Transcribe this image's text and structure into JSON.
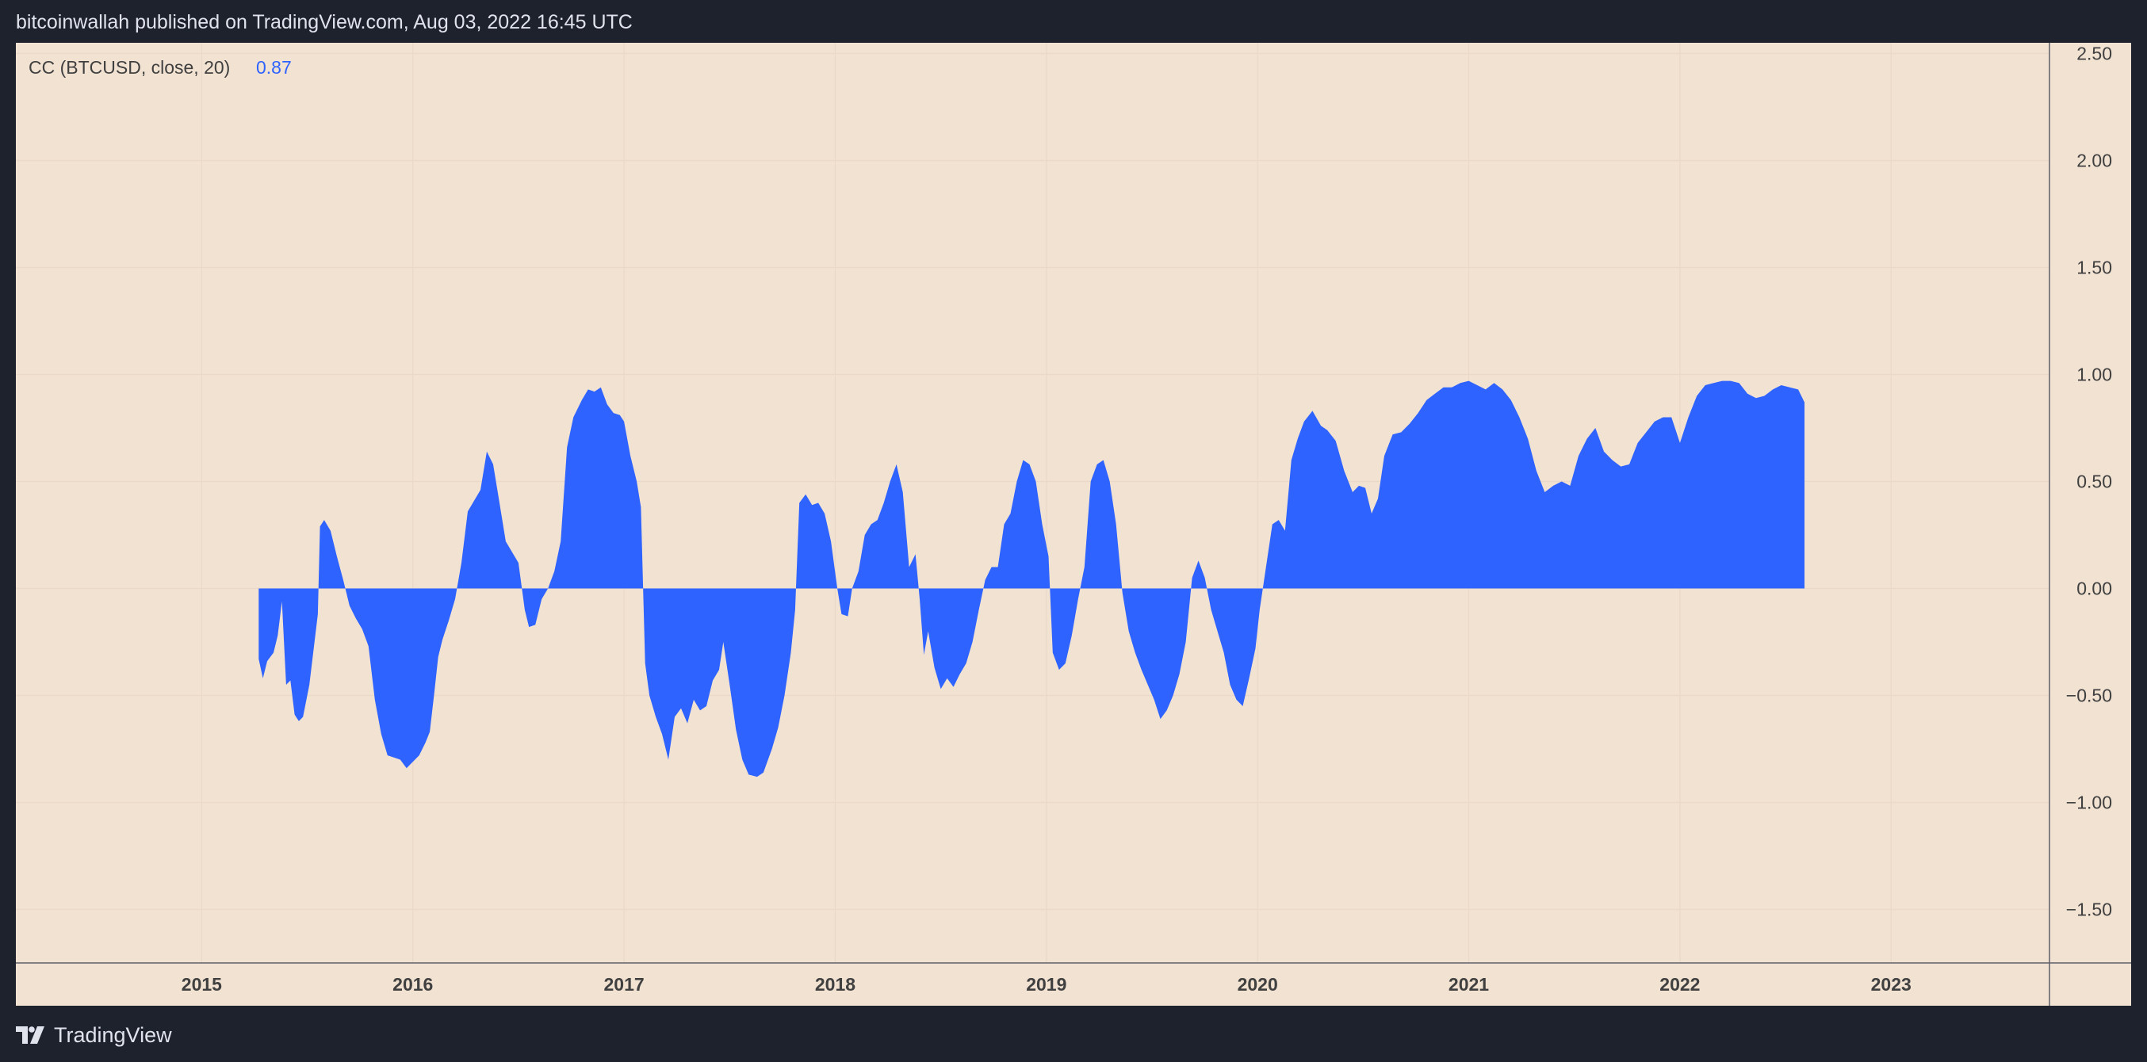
{
  "header": {
    "published_line": "bitcoinwallah published on TradingView.com, Aug 03, 2022 16:45 UTC"
  },
  "footer": {
    "brand": "TradingView",
    "logo_icon": "tradingview-logo-icon"
  },
  "colors": {
    "frame": "#1e222d",
    "plot_background": "#f2e2d2",
    "series_fill": "#2e63ff",
    "grid": "#ead8c8",
    "axis_text": "#404040",
    "header_text": "#e0e3eb"
  },
  "legend": {
    "name": "CC (BTCUSD, close, 20)",
    "value": "0.87"
  },
  "chart_data": {
    "type": "area",
    "title": "",
    "xlabel": "",
    "ylabel": "",
    "ylim": [
      -1.75,
      2.55
    ],
    "xlim": [
      2014.12,
      2023.75
    ],
    "grid": true,
    "baseline": 0,
    "y_ticks": [
      2.5,
      2.0,
      1.5,
      1.0,
      0.5,
      0.0,
      -0.5,
      -1.0,
      -1.5
    ],
    "y_tick_labels": [
      "2.50",
      "2.00",
      "1.50",
      "1.00",
      "0.50",
      "0.00",
      "−0.50",
      "−1.00",
      "−1.50"
    ],
    "x_ticks": [
      2015,
      2016,
      2017,
      2018,
      2019,
      2020,
      2021,
      2022,
      2023
    ],
    "x_tick_labels": [
      "2015",
      "2016",
      "2017",
      "2018",
      "2019",
      "2020",
      "2021",
      "2022",
      "2023"
    ],
    "series": [
      {
        "name": "CC (BTCUSD, close, 20)",
        "points": [
          [
            2015.27,
            -0.33
          ],
          [
            2015.29,
            -0.42
          ],
          [
            2015.31,
            -0.34
          ],
          [
            2015.34,
            -0.3
          ],
          [
            2015.36,
            -0.22
          ],
          [
            2015.38,
            -0.06
          ],
          [
            2015.4,
            -0.45
          ],
          [
            2015.42,
            -0.43
          ],
          [
            2015.44,
            -0.59
          ],
          [
            2015.46,
            -0.62
          ],
          [
            2015.48,
            -0.6
          ],
          [
            2015.51,
            -0.45
          ],
          [
            2015.55,
            -0.12
          ],
          [
            2015.56,
            0.29
          ],
          [
            2015.58,
            0.32
          ],
          [
            2015.61,
            0.27
          ],
          [
            2015.64,
            0.15
          ],
          [
            2015.67,
            0.04
          ],
          [
            2015.7,
            -0.08
          ],
          [
            2015.73,
            -0.14
          ],
          [
            2015.76,
            -0.19
          ],
          [
            2015.79,
            -0.27
          ],
          [
            2015.82,
            -0.52
          ],
          [
            2015.85,
            -0.68
          ],
          [
            2015.88,
            -0.78
          ],
          [
            2015.91,
            -0.79
          ],
          [
            2015.94,
            -0.8
          ],
          [
            2015.97,
            -0.84
          ],
          [
            2016.0,
            -0.81
          ],
          [
            2016.03,
            -0.78
          ],
          [
            2016.06,
            -0.72
          ],
          [
            2016.08,
            -0.67
          ],
          [
            2016.1,
            -0.5
          ],
          [
            2016.12,
            -0.32
          ],
          [
            2016.14,
            -0.24
          ],
          [
            2016.17,
            -0.15
          ],
          [
            2016.2,
            -0.05
          ],
          [
            2016.23,
            0.12
          ],
          [
            2016.26,
            0.36
          ],
          [
            2016.29,
            0.41
          ],
          [
            2016.32,
            0.46
          ],
          [
            2016.35,
            0.64
          ],
          [
            2016.38,
            0.58
          ],
          [
            2016.41,
            0.4
          ],
          [
            2016.44,
            0.22
          ],
          [
            2016.47,
            0.17
          ],
          [
            2016.5,
            0.12
          ],
          [
            2016.53,
            -0.1
          ],
          [
            2016.55,
            -0.18
          ],
          [
            2016.58,
            -0.17
          ],
          [
            2016.61,
            -0.05
          ],
          [
            2016.64,
            0.0
          ],
          [
            2016.67,
            0.08
          ],
          [
            2016.7,
            0.22
          ],
          [
            2016.73,
            0.66
          ],
          [
            2016.76,
            0.8
          ],
          [
            2016.8,
            0.88
          ],
          [
            2016.83,
            0.93
          ],
          [
            2016.86,
            0.92
          ],
          [
            2016.89,
            0.94
          ],
          [
            2016.92,
            0.86
          ],
          [
            2016.95,
            0.82
          ],
          [
            2016.98,
            0.81
          ],
          [
            2017.0,
            0.78
          ],
          [
            2017.03,
            0.62
          ],
          [
            2017.06,
            0.5
          ],
          [
            2017.08,
            0.38
          ],
          [
            2017.1,
            -0.35
          ],
          [
            2017.12,
            -0.5
          ],
          [
            2017.15,
            -0.6
          ],
          [
            2017.18,
            -0.68
          ],
          [
            2017.21,
            -0.8
          ],
          [
            2017.24,
            -0.6
          ],
          [
            2017.27,
            -0.56
          ],
          [
            2017.3,
            -0.63
          ],
          [
            2017.33,
            -0.52
          ],
          [
            2017.36,
            -0.57
          ],
          [
            2017.39,
            -0.55
          ],
          [
            2017.42,
            -0.43
          ],
          [
            2017.45,
            -0.38
          ],
          [
            2017.47,
            -0.25
          ],
          [
            2017.5,
            -0.45
          ],
          [
            2017.53,
            -0.66
          ],
          [
            2017.56,
            -0.8
          ],
          [
            2017.59,
            -0.87
          ],
          [
            2017.63,
            -0.88
          ],
          [
            2017.66,
            -0.86
          ],
          [
            2017.7,
            -0.75
          ],
          [
            2017.73,
            -0.65
          ],
          [
            2017.76,
            -0.5
          ],
          [
            2017.79,
            -0.3
          ],
          [
            2017.81,
            -0.1
          ],
          [
            2017.83,
            0.4
          ],
          [
            2017.86,
            0.44
          ],
          [
            2017.89,
            0.39
          ],
          [
            2017.92,
            0.4
          ],
          [
            2017.95,
            0.35
          ],
          [
            2017.98,
            0.22
          ],
          [
            2018.01,
            0.0
          ],
          [
            2018.03,
            -0.12
          ],
          [
            2018.06,
            -0.13
          ],
          [
            2018.08,
            0.0
          ],
          [
            2018.11,
            0.08
          ],
          [
            2018.14,
            0.25
          ],
          [
            2018.17,
            0.3
          ],
          [
            2018.2,
            0.32
          ],
          [
            2018.23,
            0.4
          ],
          [
            2018.26,
            0.5
          ],
          [
            2018.29,
            0.58
          ],
          [
            2018.32,
            0.45
          ],
          [
            2018.35,
            0.1
          ],
          [
            2018.38,
            0.16
          ],
          [
            2018.4,
            -0.05
          ],
          [
            2018.42,
            -0.31
          ],
          [
            2018.44,
            -0.2
          ],
          [
            2018.47,
            -0.37
          ],
          [
            2018.5,
            -0.47
          ],
          [
            2018.53,
            -0.42
          ],
          [
            2018.56,
            -0.46
          ],
          [
            2018.59,
            -0.4
          ],
          [
            2018.62,
            -0.35
          ],
          [
            2018.65,
            -0.25
          ],
          [
            2018.68,
            -0.1
          ],
          [
            2018.71,
            0.04
          ],
          [
            2018.74,
            0.1
          ],
          [
            2018.77,
            0.1
          ],
          [
            2018.8,
            0.3
          ],
          [
            2018.83,
            0.35
          ],
          [
            2018.86,
            0.5
          ],
          [
            2018.89,
            0.6
          ],
          [
            2018.92,
            0.58
          ],
          [
            2018.95,
            0.5
          ],
          [
            2018.98,
            0.3
          ],
          [
            2019.01,
            0.15
          ],
          [
            2019.03,
            -0.3
          ],
          [
            2019.06,
            -0.38
          ],
          [
            2019.09,
            -0.35
          ],
          [
            2019.12,
            -0.22
          ],
          [
            2019.15,
            -0.05
          ],
          [
            2019.18,
            0.1
          ],
          [
            2019.21,
            0.5
          ],
          [
            2019.24,
            0.58
          ],
          [
            2019.27,
            0.6
          ],
          [
            2019.3,
            0.5
          ],
          [
            2019.33,
            0.3
          ],
          [
            2019.36,
            -0.02
          ],
          [
            2019.39,
            -0.2
          ],
          [
            2019.42,
            -0.3
          ],
          [
            2019.45,
            -0.38
          ],
          [
            2019.48,
            -0.45
          ],
          [
            2019.51,
            -0.52
          ],
          [
            2019.54,
            -0.61
          ],
          [
            2019.57,
            -0.57
          ],
          [
            2019.6,
            -0.5
          ],
          [
            2019.63,
            -0.4
          ],
          [
            2019.66,
            -0.25
          ],
          [
            2019.69,
            0.05
          ],
          [
            2019.72,
            0.13
          ],
          [
            2019.75,
            0.05
          ],
          [
            2019.78,
            -0.1
          ],
          [
            2019.81,
            -0.2
          ],
          [
            2019.84,
            -0.3
          ],
          [
            2019.87,
            -0.45
          ],
          [
            2019.9,
            -0.52
          ],
          [
            2019.93,
            -0.55
          ],
          [
            2019.96,
            -0.42
          ],
          [
            2019.99,
            -0.28
          ],
          [
            2020.01,
            -0.1
          ],
          [
            2020.04,
            0.1
          ],
          [
            2020.07,
            0.3
          ],
          [
            2020.1,
            0.32
          ],
          [
            2020.13,
            0.27
          ],
          [
            2020.16,
            0.6
          ],
          [
            2020.19,
            0.7
          ],
          [
            2020.22,
            0.78
          ],
          [
            2020.26,
            0.83
          ],
          [
            2020.3,
            0.76
          ],
          [
            2020.33,
            0.74
          ],
          [
            2020.37,
            0.69
          ],
          [
            2020.41,
            0.55
          ],
          [
            2020.45,
            0.45
          ],
          [
            2020.48,
            0.48
          ],
          [
            2020.51,
            0.47
          ],
          [
            2020.54,
            0.35
          ],
          [
            2020.57,
            0.42
          ],
          [
            2020.6,
            0.62
          ],
          [
            2020.64,
            0.72
          ],
          [
            2020.68,
            0.73
          ],
          [
            2020.72,
            0.77
          ],
          [
            2020.76,
            0.82
          ],
          [
            2020.8,
            0.88
          ],
          [
            2020.84,
            0.91
          ],
          [
            2020.88,
            0.94
          ],
          [
            2020.92,
            0.94
          ],
          [
            2020.96,
            0.96
          ],
          [
            2021.0,
            0.97
          ],
          [
            2021.04,
            0.95
          ],
          [
            2021.08,
            0.93
          ],
          [
            2021.12,
            0.96
          ],
          [
            2021.16,
            0.93
          ],
          [
            2021.2,
            0.88
          ],
          [
            2021.24,
            0.8
          ],
          [
            2021.28,
            0.7
          ],
          [
            2021.32,
            0.55
          ],
          [
            2021.36,
            0.45
          ],
          [
            2021.4,
            0.48
          ],
          [
            2021.44,
            0.5
          ],
          [
            2021.48,
            0.48
          ],
          [
            2021.52,
            0.62
          ],
          [
            2021.56,
            0.7
          ],
          [
            2021.6,
            0.75
          ],
          [
            2021.64,
            0.64
          ],
          [
            2021.68,
            0.6
          ],
          [
            2021.72,
            0.57
          ],
          [
            2021.76,
            0.58
          ],
          [
            2021.8,
            0.68
          ],
          [
            2021.84,
            0.73
          ],
          [
            2021.88,
            0.78
          ],
          [
            2021.92,
            0.8
          ],
          [
            2021.96,
            0.8
          ],
          [
            2022.0,
            0.68
          ],
          [
            2022.04,
            0.8
          ],
          [
            2022.08,
            0.9
          ],
          [
            2022.12,
            0.95
          ],
          [
            2022.16,
            0.96
          ],
          [
            2022.2,
            0.97
          ],
          [
            2022.24,
            0.97
          ],
          [
            2022.28,
            0.96
          ],
          [
            2022.32,
            0.91
          ],
          [
            2022.36,
            0.89
          ],
          [
            2022.4,
            0.9
          ],
          [
            2022.44,
            0.93
          ],
          [
            2022.48,
            0.95
          ],
          [
            2022.52,
            0.94
          ],
          [
            2022.56,
            0.93
          ],
          [
            2022.59,
            0.87
          ]
        ]
      }
    ]
  }
}
